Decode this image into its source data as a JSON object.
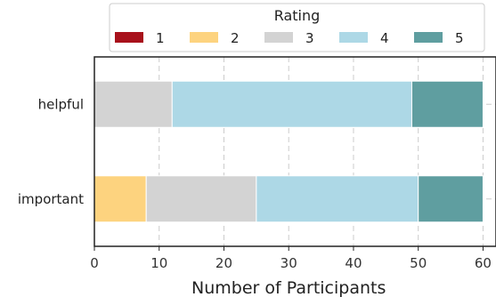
{
  "chart_data": {
    "type": "bar",
    "orientation": "horizontal",
    "stacked": true,
    "categories": [
      "helpful",
      "important"
    ],
    "series": [
      {
        "name": "1",
        "color": "#a8111b",
        "values": [
          0,
          0
        ]
      },
      {
        "name": "2",
        "color": "#fdd37f",
        "values": [
          0,
          8
        ]
      },
      {
        "name": "3",
        "color": "#d3d3d3",
        "values": [
          12,
          17
        ]
      },
      {
        "name": "4",
        "color": "#add8e6",
        "values": [
          37,
          25
        ]
      },
      {
        "name": "5",
        "color": "#5f9ea0",
        "values": [
          11,
          10
        ]
      }
    ],
    "xlabel": "Number of Participants",
    "ylabel": "",
    "xlim": [
      0,
      62
    ],
    "xticks": [
      0,
      10,
      20,
      30,
      40,
      50,
      60
    ],
    "grid": true,
    "legend": {
      "title": "Rating",
      "placement": "top-center",
      "columns": 5
    }
  }
}
